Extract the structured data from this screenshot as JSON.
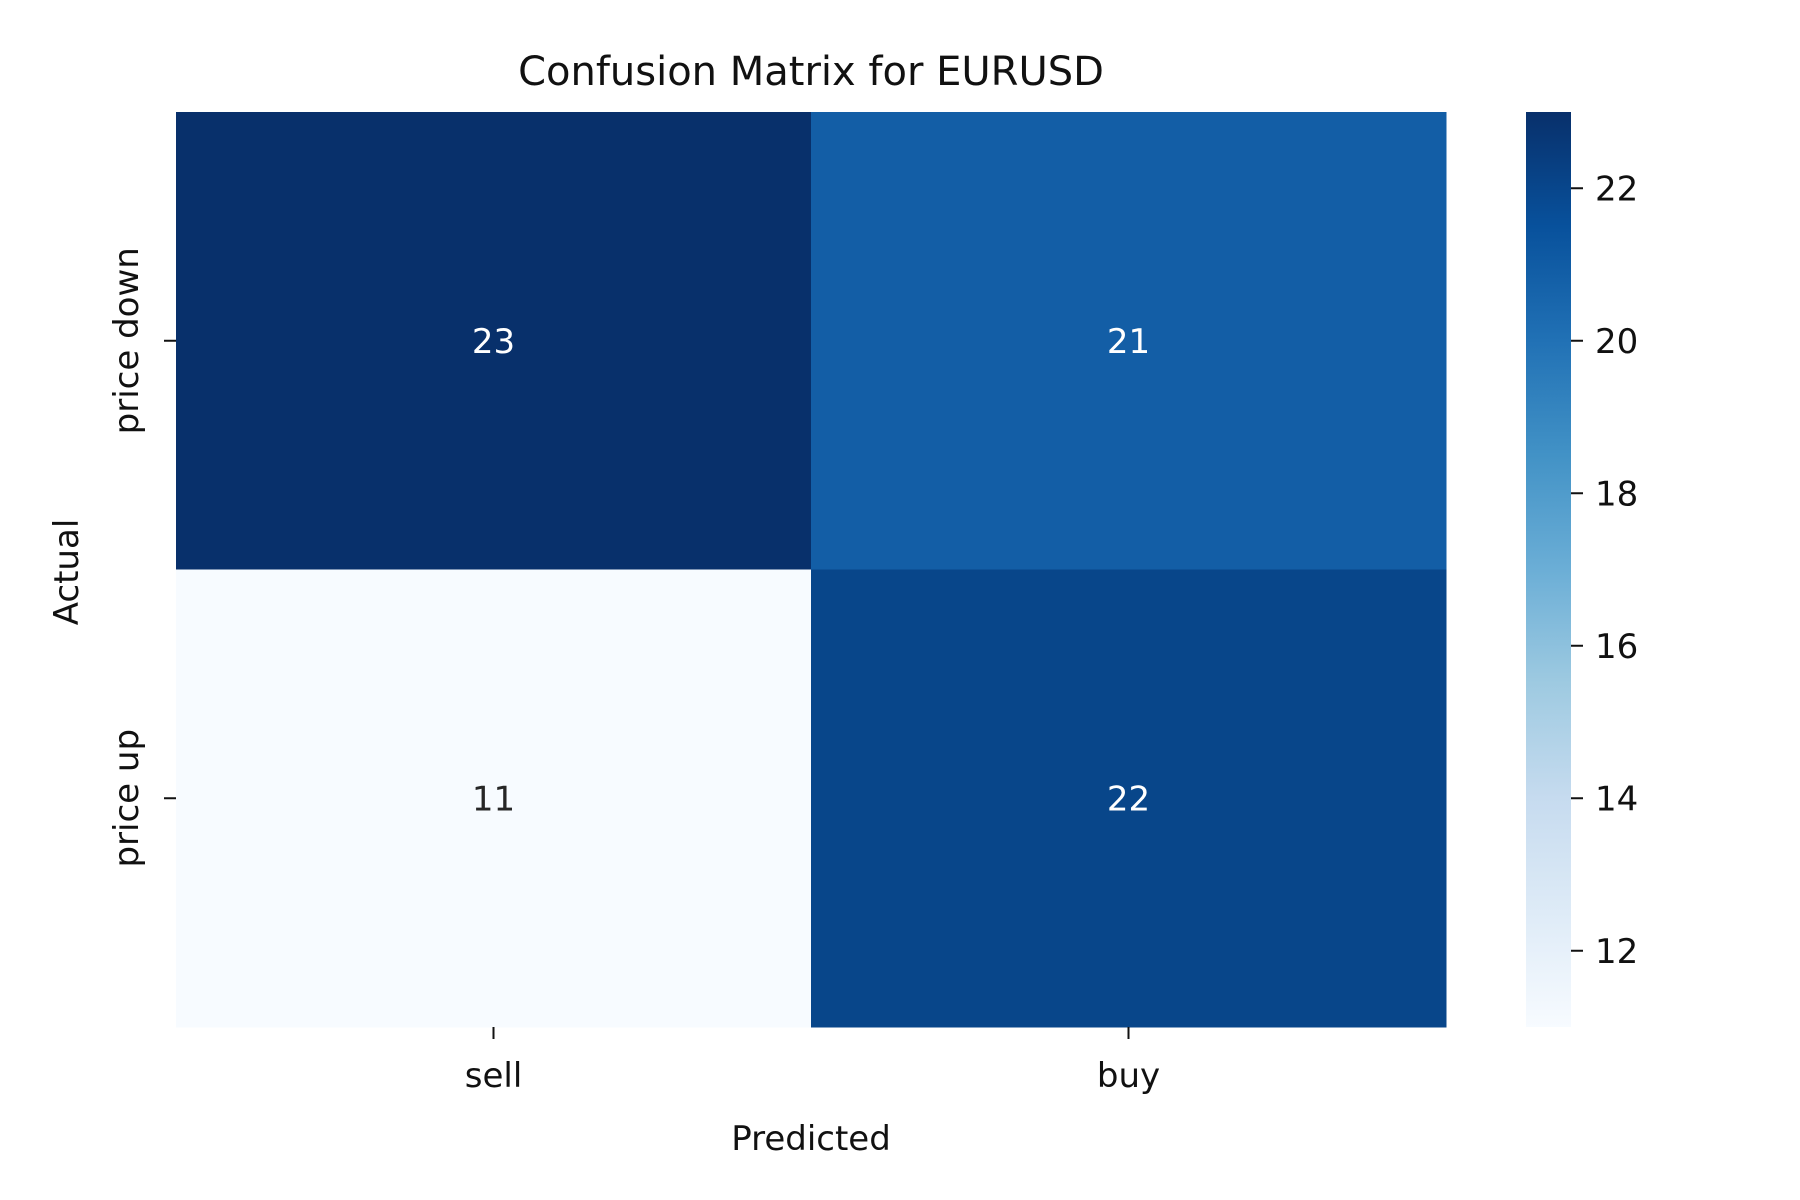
{
  "chart_data": {
    "type": "heatmap",
    "title": "Confusion Matrix for EURUSD",
    "xlabel": "Predicted",
    "ylabel": "Actual",
    "x_categories": [
      "sell",
      "buy"
    ],
    "y_categories": [
      "price down",
      "price up"
    ],
    "values": [
      [
        23,
        21
      ],
      [
        11,
        22
      ]
    ],
    "colormap": "Blues",
    "color_range": [
      11,
      23
    ],
    "colorbar": {
      "ticks": [
        12,
        14,
        16,
        18,
        20,
        22
      ],
      "tick_labels": [
        "12",
        "14",
        "16",
        "18",
        "20",
        "22"
      ],
      "placement": "right"
    },
    "annotations": true,
    "cell_colors": [
      [
        "#08306b",
        "#135ea6"
      ],
      [
        "#f7fbff",
        "#08468a"
      ]
    ],
    "annotation_colors": [
      [
        "#ffffff",
        "#ffffff"
      ],
      [
        "#262626",
        "#ffffff"
      ]
    ]
  }
}
